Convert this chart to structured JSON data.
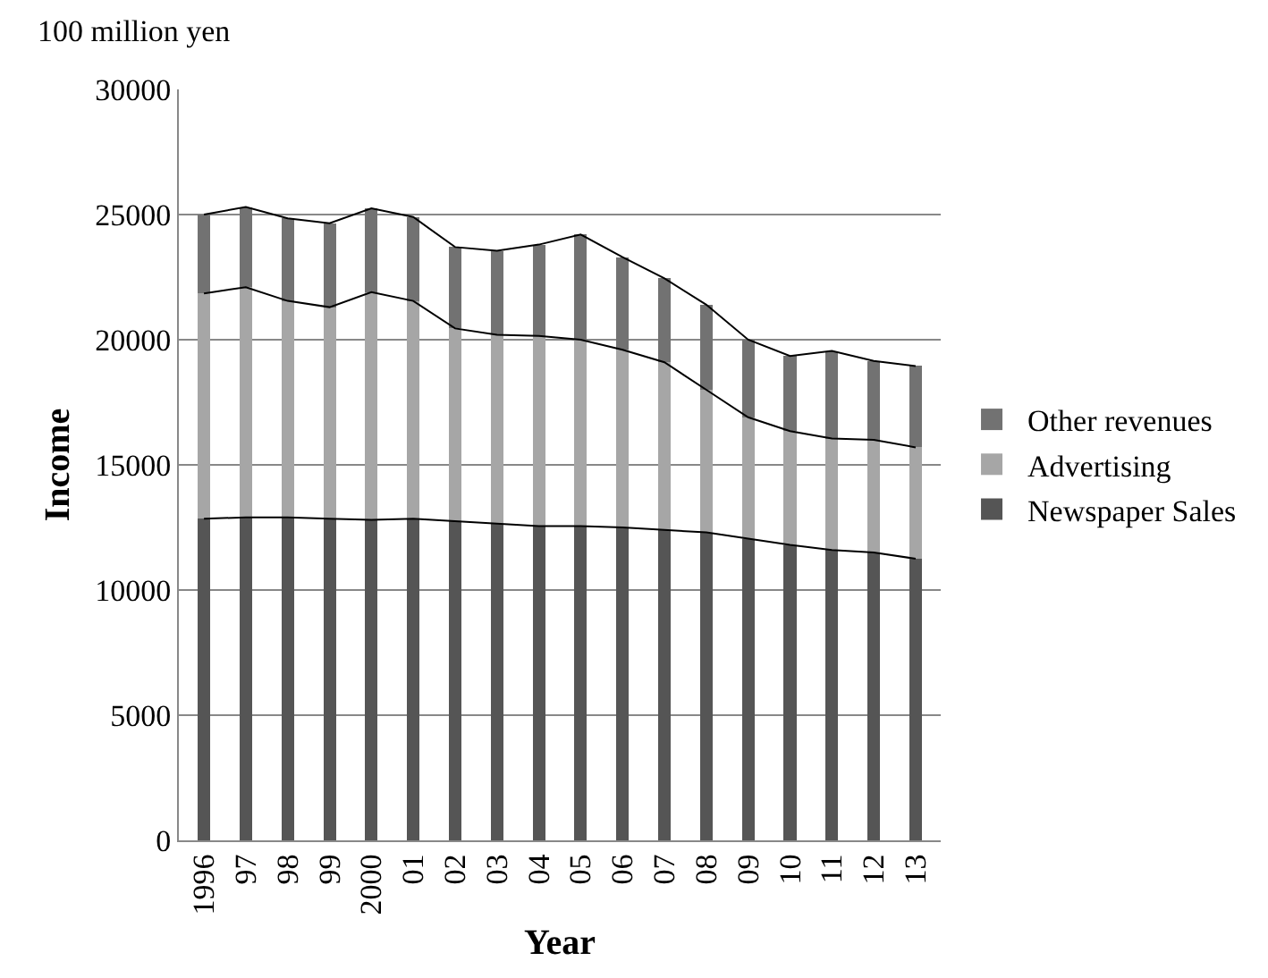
{
  "chart_data": {
    "type": "bar",
    "stacked": true,
    "xlabel": "Year",
    "ylabel": "Income",
    "annotations": [
      "100 million yen"
    ],
    "categories": [
      "1996",
      "97",
      "98",
      "99",
      "2000",
      "01",
      "02",
      "03",
      "04",
      "05",
      "06",
      "07",
      "08",
      "09",
      "10",
      "11",
      "12",
      "13"
    ],
    "series": [
      {
        "name": "Newspaper Sales",
        "color": "#555555",
        "values": [
          12850,
          12900,
          12900,
          12850,
          12800,
          12850,
          12750,
          12650,
          12550,
          12550,
          12500,
          12400,
          12300,
          12050,
          11800,
          11600,
          11500,
          11250
        ]
      },
      {
        "name": "Advertising",
        "color": "#a6a6a6",
        "values": [
          9000,
          9200,
          8650,
          8450,
          9100,
          8700,
          7700,
          7550,
          7600,
          7450,
          7100,
          6700,
          5700,
          4850,
          4550,
          4450,
          4500,
          4450
        ]
      },
      {
        "name": "Other revenues",
        "color": "#727272",
        "values": [
          3150,
          3200,
          3300,
          3350,
          3350,
          3350,
          3250,
          3350,
          3650,
          4200,
          3700,
          3350,
          3400,
          3100,
          3000,
          3500,
          3150,
          3250
        ]
      }
    ],
    "ylim": [
      0,
      30000
    ],
    "yticks": [
      0,
      5000,
      10000,
      15000,
      20000,
      25000,
      30000
    ],
    "grid": "y",
    "legend": "right"
  }
}
